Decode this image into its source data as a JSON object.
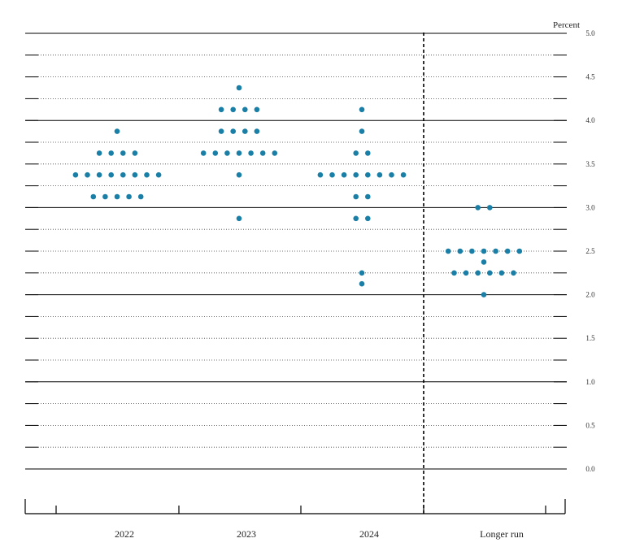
{
  "chart_data": {
    "type": "scatter",
    "unit_label": "Percent",
    "categories": [
      "2022",
      "2023",
      "2024",
      "Longer run"
    ],
    "ylim": [
      0.0,
      5.0
    ],
    "y_ticks": [
      "0.0",
      "0.5",
      "1.0",
      "1.5",
      "2.0",
      "2.5",
      "3.0",
      "3.5",
      "4.0",
      "4.5",
      "5.0"
    ],
    "grid": true,
    "dot_color": "#1a7fa6",
    "points": {
      "2022": [
        {
          "y": 3.875,
          "count": 1
        },
        {
          "y": 3.625,
          "count": 4
        },
        {
          "y": 3.375,
          "count": 8
        },
        {
          "y": 3.125,
          "count": 5
        }
      ],
      "2023": [
        {
          "y": 4.375,
          "count": 1
        },
        {
          "y": 4.125,
          "count": 4
        },
        {
          "y": 3.875,
          "count": 4
        },
        {
          "y": 3.625,
          "count": 7
        },
        {
          "y": 3.375,
          "count": 1
        },
        {
          "y": 2.875,
          "count": 1
        }
      ],
      "2024": [
        {
          "y": 4.125,
          "count": 1
        },
        {
          "y": 3.875,
          "count": 1
        },
        {
          "y": 3.625,
          "count": 2
        },
        {
          "y": 3.375,
          "count": 8
        },
        {
          "y": 3.125,
          "count": 2
        },
        {
          "y": 2.875,
          "count": 2
        },
        {
          "y": 2.25,
          "count": 1
        },
        {
          "y": 2.125,
          "count": 1
        }
      ],
      "Longer run": [
        {
          "y": 3.0,
          "count": 2
        },
        {
          "y": 2.5,
          "count": 7
        },
        {
          "y": 2.375,
          "count": 1
        },
        {
          "y": 2.25,
          "count": 6
        },
        {
          "y": 2.0,
          "count": 1
        }
      ]
    }
  }
}
